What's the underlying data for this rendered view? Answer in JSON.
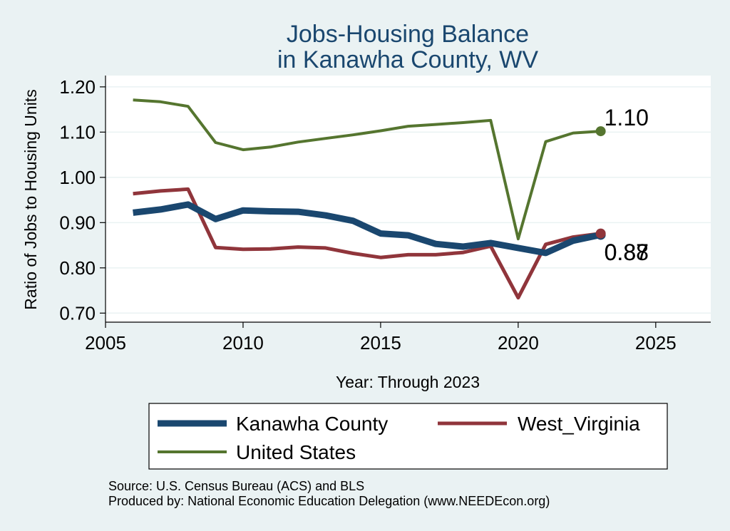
{
  "chart_data": {
    "type": "line",
    "title": [
      "Jobs-Housing Balance",
      "in Kanawha County, WV"
    ],
    "xlabel": "Year: Through 2023",
    "ylabel": "Ratio of Jobs to Housing Units",
    "xlim": [
      2005,
      2027
    ],
    "ylim": [
      0.68,
      1.225
    ],
    "x_ticks": [
      2005,
      2010,
      2015,
      2020,
      2025
    ],
    "y_ticks": [
      0.7,
      0.8,
      0.9,
      1.0,
      1.1,
      1.2
    ],
    "y_tick_labels": [
      "0.70",
      "0.80",
      "0.90",
      "1.00",
      "1.10",
      "1.20"
    ],
    "grid": true,
    "legend_position": "bottom",
    "x": [
      2006,
      2007,
      2008,
      2009,
      2010,
      2011,
      2012,
      2013,
      2014,
      2015,
      2016,
      2017,
      2018,
      2019,
      2020,
      2021,
      2022,
      2023
    ],
    "series": [
      {
        "name": "Kanawha County",
        "color": "#1a476f",
        "values": [
          0.922,
          0.929,
          0.94,
          0.908,
          0.927,
          0.925,
          0.924,
          0.916,
          0.904,
          0.876,
          0.872,
          0.853,
          0.847,
          0.855,
          0.844,
          0.833,
          0.86,
          0.873
        ],
        "end_label": "0.87"
      },
      {
        "name": "West_Virginia",
        "color": "#90353b",
        "values": [
          0.964,
          0.97,
          0.974,
          0.845,
          0.841,
          0.842,
          0.846,
          0.844,
          0.832,
          0.823,
          0.829,
          0.829,
          0.834,
          0.848,
          0.734,
          0.852,
          0.868,
          0.876
        ],
        "end_label": "0.88"
      },
      {
        "name": "United States",
        "color": "#55752f",
        "values": [
          1.171,
          1.167,
          1.157,
          1.077,
          1.061,
          1.067,
          1.078,
          1.086,
          1.094,
          1.103,
          1.113,
          1.117,
          1.121,
          1.126,
          0.864,
          1.079,
          1.098,
          1.102
        ],
        "end_label": "1.10"
      }
    ],
    "notes": [
      "Source: U.S. Census Bureau (ACS) and BLS",
      "Produced by: National Economic Education Delegation (www.NEEDEcon.org)"
    ]
  }
}
